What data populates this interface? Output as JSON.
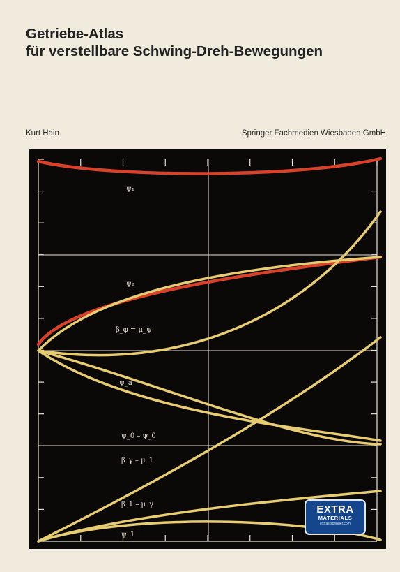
{
  "cover": {
    "title_line1": "Getriebe-Atlas",
    "title_line2": "für verstellbare Schwing-Dreh-Bewegungen",
    "author": "Kurt Hain",
    "publisher": "Springer Fachmedien Wiesbaden GmbH"
  },
  "figure": {
    "labels": [
      "ψ₁",
      "ψ₂",
      "β_φ = μ_ψ",
      "ψ_a",
      "ψ_0 – ψ_0",
      "β_γ – μ_1",
      "β_1 – μ_γ",
      "ψ_1"
    ],
    "colors": {
      "background": "#0a0908",
      "grid": "#e8e3d6",
      "red_curve": "#d8422a",
      "yellow_curve": "#e8cc72"
    }
  },
  "badge": {
    "line1": "EXTRA",
    "line2": "MATERIALS",
    "line3": "extras.springer.com"
  }
}
